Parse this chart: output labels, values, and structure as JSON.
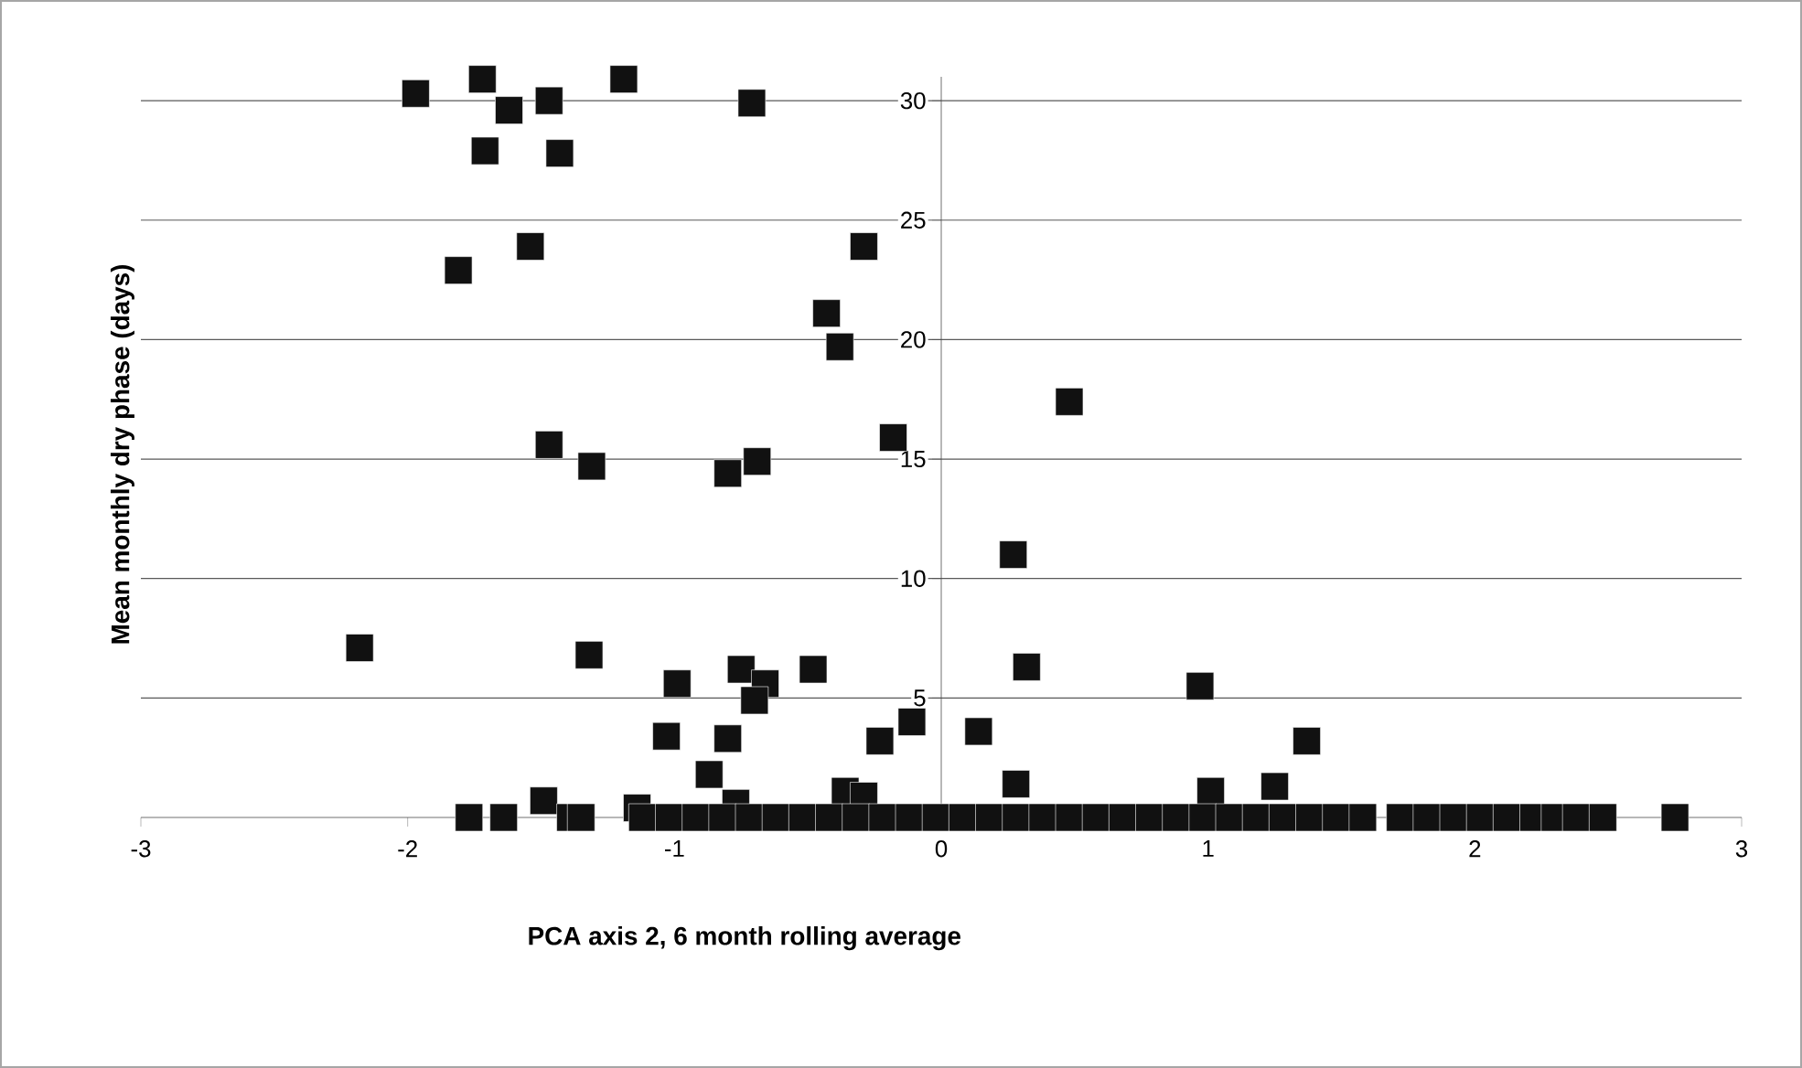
{
  "chart_data": {
    "type": "scatter",
    "xlabel": "PCA axis 2, 6 month rolling average",
    "ylabel": "Mean monthly dry phase (days)",
    "xlim": [
      -3,
      3
    ],
    "ylim": [
      0,
      31
    ],
    "xticks": [
      -3,
      -2,
      -1,
      0,
      1,
      2,
      3
    ],
    "yticks": [
      5,
      10,
      15,
      20,
      25,
      30
    ],
    "grid": "y",
    "marker": "square",
    "series": [
      {
        "color": "#111111",
        "x": [
          -1.97,
          -1.72,
          -1.62,
          -1.47,
          -1.19,
          -0.71,
          -1.71,
          -1.43,
          -1.54,
          -1.81,
          -0.29,
          -0.43,
          -0.38,
          -0.18,
          -1.47,
          -1.31,
          -0.8,
          -0.69,
          0.48,
          0.27,
          0.32,
          0.97,
          1.37,
          0.14,
          -0.11,
          0.28,
          1.25,
          1.01,
          -2.18,
          -1.32,
          -0.99,
          -0.75,
          -0.66,
          -0.7,
          -0.48,
          -1.03,
          -0.8,
          -0.87,
          -0.23,
          -1.49,
          -0.36,
          -0.29,
          -0.77,
          -1.14,
          -1.77,
          -1.64,
          -1.39,
          -1.35,
          -1.12,
          -1.02,
          -0.92,
          -0.82,
          -0.72,
          -0.62,
          -0.52,
          -0.42,
          -0.32,
          -0.22,
          -0.12,
          -0.02,
          0.08,
          0.18,
          0.28,
          0.38,
          0.48,
          0.58,
          0.68,
          0.78,
          0.88,
          0.98,
          1.08,
          1.18,
          1.28,
          1.38,
          1.48,
          1.58,
          1.72,
          1.82,
          1.92,
          2.02,
          2.12,
          2.22,
          2.3,
          2.38,
          2.48,
          2.75
        ],
        "values": [
          30.3,
          30.9,
          29.6,
          30.0,
          30.9,
          29.9,
          27.9,
          27.8,
          23.9,
          22.9,
          23.9,
          21.1,
          19.7,
          15.9,
          15.6,
          14.7,
          14.4,
          14.9,
          17.4,
          11.0,
          6.3,
          5.5,
          3.2,
          3.6,
          4.0,
          1.4,
          1.3,
          1.1,
          7.1,
          6.8,
          5.6,
          6.2,
          5.6,
          4.9,
          6.2,
          3.4,
          3.3,
          1.8,
          3.2,
          0.7,
          1.1,
          0.9,
          0.6,
          0.4,
          0,
          0,
          0,
          0,
          0,
          0,
          0,
          0,
          0,
          0,
          0,
          0,
          0,
          0,
          0,
          0,
          0,
          0,
          0,
          0,
          0,
          0,
          0,
          0,
          0,
          0,
          0,
          0,
          0,
          0,
          0,
          0,
          0,
          0,
          0,
          0,
          0,
          0,
          0,
          0,
          0,
          0
        ]
      }
    ]
  }
}
